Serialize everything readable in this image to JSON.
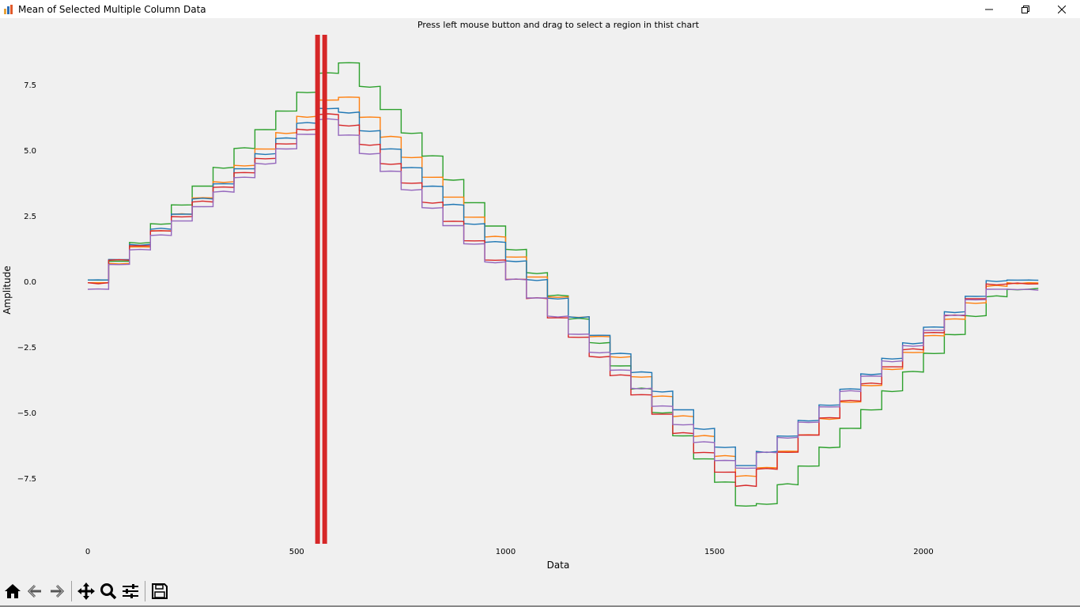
{
  "window": {
    "title": "Mean of Selected Multiple Column Data",
    "controls": [
      "minimize-icon",
      "restore-icon",
      "close-icon"
    ]
  },
  "toolbar": {
    "buttons": [
      {
        "name": "home-button",
        "icon": "home-icon"
      },
      {
        "name": "back-button",
        "icon": "arrow-left-icon"
      },
      {
        "name": "forward-button",
        "icon": "arrow-right-icon"
      },
      {
        "name": "pan-button",
        "icon": "move-icon"
      },
      {
        "name": "zoom-button",
        "icon": "magnifier-icon"
      },
      {
        "name": "configure-button",
        "icon": "sliders-icon"
      },
      {
        "name": "save-button",
        "icon": "floppy-icon"
      }
    ]
  },
  "chart_data": {
    "type": "line",
    "title": "Press left mouse button and drag to select a region in thist chart",
    "xlabel": "Data",
    "ylabel": "Amplitude",
    "xlim": [
      -50,
      2260
    ],
    "ylim": [
      -9.9,
      9.4
    ],
    "x_ticks": [
      0,
      500,
      1000,
      1500,
      2000
    ],
    "y_ticks": [
      7.5,
      5.0,
      2.5,
      0.0,
      -2.5,
      -5.0,
      -7.5
    ],
    "x_tick_labels": [
      "0",
      "500",
      "1000",
      "1500",
      "2000"
    ],
    "y_tick_labels": [
      "7.5",
      "5.0",
      "2.5",
      "0.0",
      "−2.5",
      "−5.0",
      "−7.5"
    ],
    "grid": false,
    "selection_lines": {
      "x": [
        550,
        567
      ],
      "color": "#d62728"
    },
    "series": [
      {
        "color": "#2ca02c",
        "start": 0.05,
        "peak": 8.5,
        "trough": -8.9,
        "end": -0.3,
        "lag": 0
      },
      {
        "color": "#ff7f0e",
        "start": -0.05,
        "peak": 7.3,
        "trough": -7.6,
        "end": -0.05,
        "lag": 0
      },
      {
        "color": "#1f77b4",
        "start": 0.05,
        "peak": 6.85,
        "trough": -7.05,
        "end": 0.05,
        "lag": 0
      },
      {
        "color": "#d62728",
        "start": -0.05,
        "peak": 6.5,
        "trough": -7.9,
        "end": -0.1,
        "lag": 0
      },
      {
        "color": "#9467bd",
        "start": -0.3,
        "peak": 6.2,
        "trough": -7.3,
        "end": -0.3,
        "lag": 0
      }
    ],
    "x_peak": 590,
    "x_trough": 1570,
    "x_end": 2250,
    "x_step": 50
  }
}
